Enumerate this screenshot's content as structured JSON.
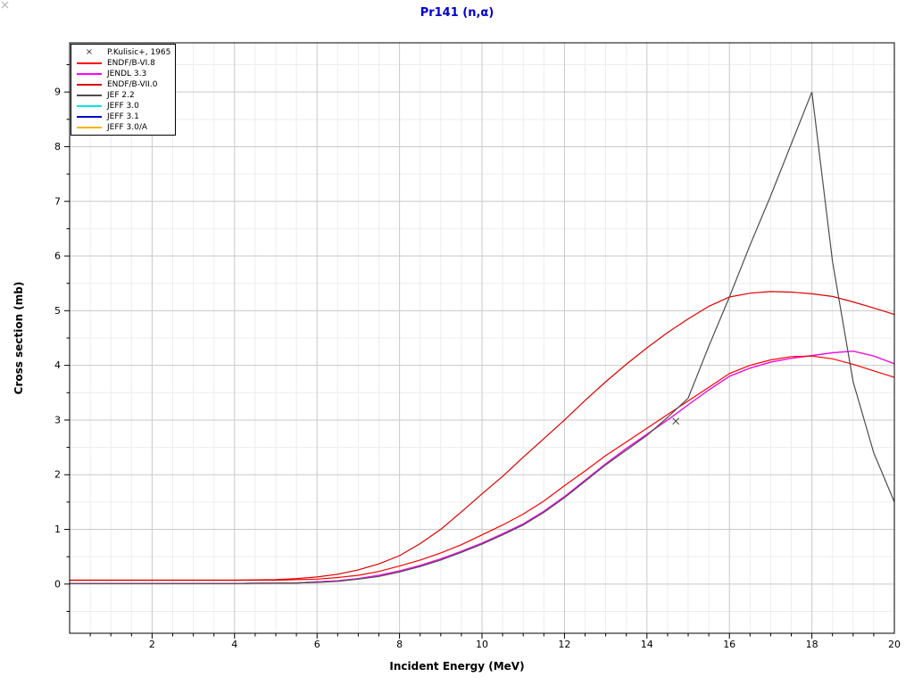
{
  "title": {
    "text": "Pr141 (n,α)",
    "color": "#0000cc"
  },
  "axes": {
    "x_label": "Incident Energy (MeV)",
    "y_label": "Cross section (mb)",
    "xlim": [
      0,
      20
    ],
    "ylim": [
      -0.9,
      9.9
    ],
    "x_ticks": [
      2,
      4,
      6,
      8,
      10,
      12,
      14,
      16,
      18,
      20
    ],
    "y_ticks": [
      0,
      1,
      2,
      3,
      4,
      5,
      6,
      7,
      8,
      9
    ],
    "minor_step": 0.5,
    "grid_major_color": "#c9c9c9",
    "grid_minor_color": "#ededed",
    "frame_color": "#000000",
    "tick_color": "#000000"
  },
  "legend": {
    "items": [
      {
        "label": "P.Kulisic+, 1965",
        "type": "marker",
        "marker": "×",
        "color": "#333333"
      },
      {
        "label": "ENDF/B-VI.8",
        "type": "line",
        "color": "#ff0000"
      },
      {
        "label": "JENDL 3.3",
        "type": "line",
        "color": "#ff00ff"
      },
      {
        "label": "ENDF/B-VII.0",
        "type": "line",
        "color": "#dd0000"
      },
      {
        "label": "JEF 2.2",
        "type": "line",
        "color": "#4d4d4d"
      },
      {
        "label": "JEFF 3.0",
        "type": "line",
        "color": "#00e5e5"
      },
      {
        "label": "JEFF 3.1",
        "type": "line",
        "color": "#0000cc"
      },
      {
        "label": "JEFF 3.0/A",
        "type": "line",
        "color": "#ffb300"
      }
    ]
  },
  "corner_artifact": {
    "glyph": "x",
    "color": "#aaaaaa"
  },
  "chart_data": {
    "type": "line",
    "title": "Pr141 (n,α)",
    "xlabel": "Incident Energy (MeV)",
    "ylabel": "Cross section (mb)",
    "xlim": [
      0,
      20
    ],
    "ylim": [
      -0.9,
      9.9
    ],
    "grid": true,
    "legend_position": "upper-left",
    "x": [
      0,
      1,
      2,
      3,
      4,
      5,
      5.5,
      6,
      6.5,
      7,
      7.5,
      8,
      8.5,
      9,
      9.5,
      10,
      10.5,
      11,
      11.5,
      12,
      12.5,
      13,
      13.5,
      14,
      14.5,
      15,
      15.5,
      16,
      16.5,
      17,
      17.5,
      18,
      18.5,
      19,
      19.5,
      20
    ],
    "series": [
      {
        "name": "JEFF 3.0",
        "color": "#00e5e5",
        "y": [
          0.01,
          0.01,
          0.01,
          0.01,
          0.01,
          0.02,
          0.02,
          0.04,
          0.06,
          0.1,
          0.16,
          0.24,
          0.34,
          0.46,
          0.6,
          0.75,
          0.92,
          1.1,
          1.33,
          1.6,
          1.9,
          2.2,
          2.48,
          2.74,
          3.0,
          3.28,
          3.55,
          3.8,
          3.95,
          4.06,
          4.13,
          4.18,
          4.23,
          4.26,
          4.17,
          4.03
        ]
      },
      {
        "name": "JEFF 3.1",
        "color": "#0000cc",
        "y": [
          0.01,
          0.01,
          0.01,
          0.01,
          0.01,
          0.02,
          0.02,
          0.04,
          0.06,
          0.1,
          0.16,
          0.24,
          0.34,
          0.46,
          0.6,
          0.75,
          0.92,
          1.1,
          1.33,
          1.6,
          1.9,
          2.2,
          2.48,
          2.74,
          3.0,
          3.28,
          3.55,
          3.8,
          3.95,
          4.06,
          4.13,
          4.18,
          4.23,
          4.26,
          4.17,
          4.03
        ]
      },
      {
        "name": "JEFF 3.0/A",
        "color": "#ffb300",
        "y": [
          0.01,
          0.01,
          0.01,
          0.01,
          0.01,
          0.02,
          0.02,
          0.04,
          0.06,
          0.1,
          0.16,
          0.24,
          0.34,
          0.46,
          0.6,
          0.75,
          0.92,
          1.1,
          1.33,
          1.6,
          1.9,
          2.2,
          2.48,
          2.74,
          3.0,
          3.28,
          3.55,
          3.8,
          3.95,
          4.06,
          4.13,
          4.18,
          4.23,
          4.26,
          4.17,
          4.03
        ]
      },
      {
        "name": "JENDL 3.3",
        "color": "#ff00ff",
        "y": [
          0.01,
          0.01,
          0.01,
          0.01,
          0.01,
          0.02,
          0.02,
          0.04,
          0.06,
          0.1,
          0.16,
          0.24,
          0.34,
          0.46,
          0.6,
          0.75,
          0.92,
          1.1,
          1.33,
          1.6,
          1.9,
          2.2,
          2.48,
          2.74,
          3.0,
          3.28,
          3.55,
          3.8,
          3.95,
          4.06,
          4.13,
          4.18,
          4.23,
          4.26,
          4.17,
          4.03
        ]
      },
      {
        "name": "ENDF/B-VI.8",
        "color": "#ff0000",
        "y": [
          0.07,
          0.07,
          0.07,
          0.07,
          0.07,
          0.07,
          0.08,
          0.09,
          0.12,
          0.16,
          0.23,
          0.33,
          0.44,
          0.57,
          0.72,
          0.9,
          1.08,
          1.28,
          1.52,
          1.8,
          2.07,
          2.35,
          2.6,
          2.85,
          3.1,
          3.35,
          3.6,
          3.85,
          4.0,
          4.1,
          4.16,
          4.17,
          4.12,
          4.02,
          3.9,
          3.78
        ]
      },
      {
        "name": "ENDF/B-VII.0",
        "color": "#dd0000",
        "y": [
          0.07,
          0.07,
          0.07,
          0.07,
          0.07,
          0.08,
          0.1,
          0.13,
          0.18,
          0.26,
          0.37,
          0.52,
          0.74,
          1.0,
          1.32,
          1.65,
          1.97,
          2.32,
          2.66,
          3.0,
          3.36,
          3.7,
          4.02,
          4.32,
          4.6,
          4.85,
          5.08,
          5.25,
          5.32,
          5.35,
          5.34,
          5.31,
          5.26,
          5.16,
          5.05,
          4.93
        ]
      },
      {
        "name": "JEF 2.2",
        "color": "#4d4d4d",
        "y": [
          0.01,
          0.01,
          0.01,
          0.01,
          0.01,
          0.02,
          0.02,
          0.03,
          0.05,
          0.09,
          0.14,
          0.22,
          0.32,
          0.44,
          0.58,
          0.73,
          0.9,
          1.08,
          1.31,
          1.58,
          1.88,
          2.18,
          2.45,
          2.72,
          3.05,
          3.4,
          4.35,
          5.25,
          6.2,
          7.1,
          8.05,
          9.0,
          5.9,
          3.7,
          2.4,
          1.5
        ]
      }
    ],
    "points": [
      {
        "name": "P.Kulisic+, 1965",
        "marker": "x",
        "color": "#333333",
        "x": 14.7,
        "y": 2.98
      }
    ]
  }
}
